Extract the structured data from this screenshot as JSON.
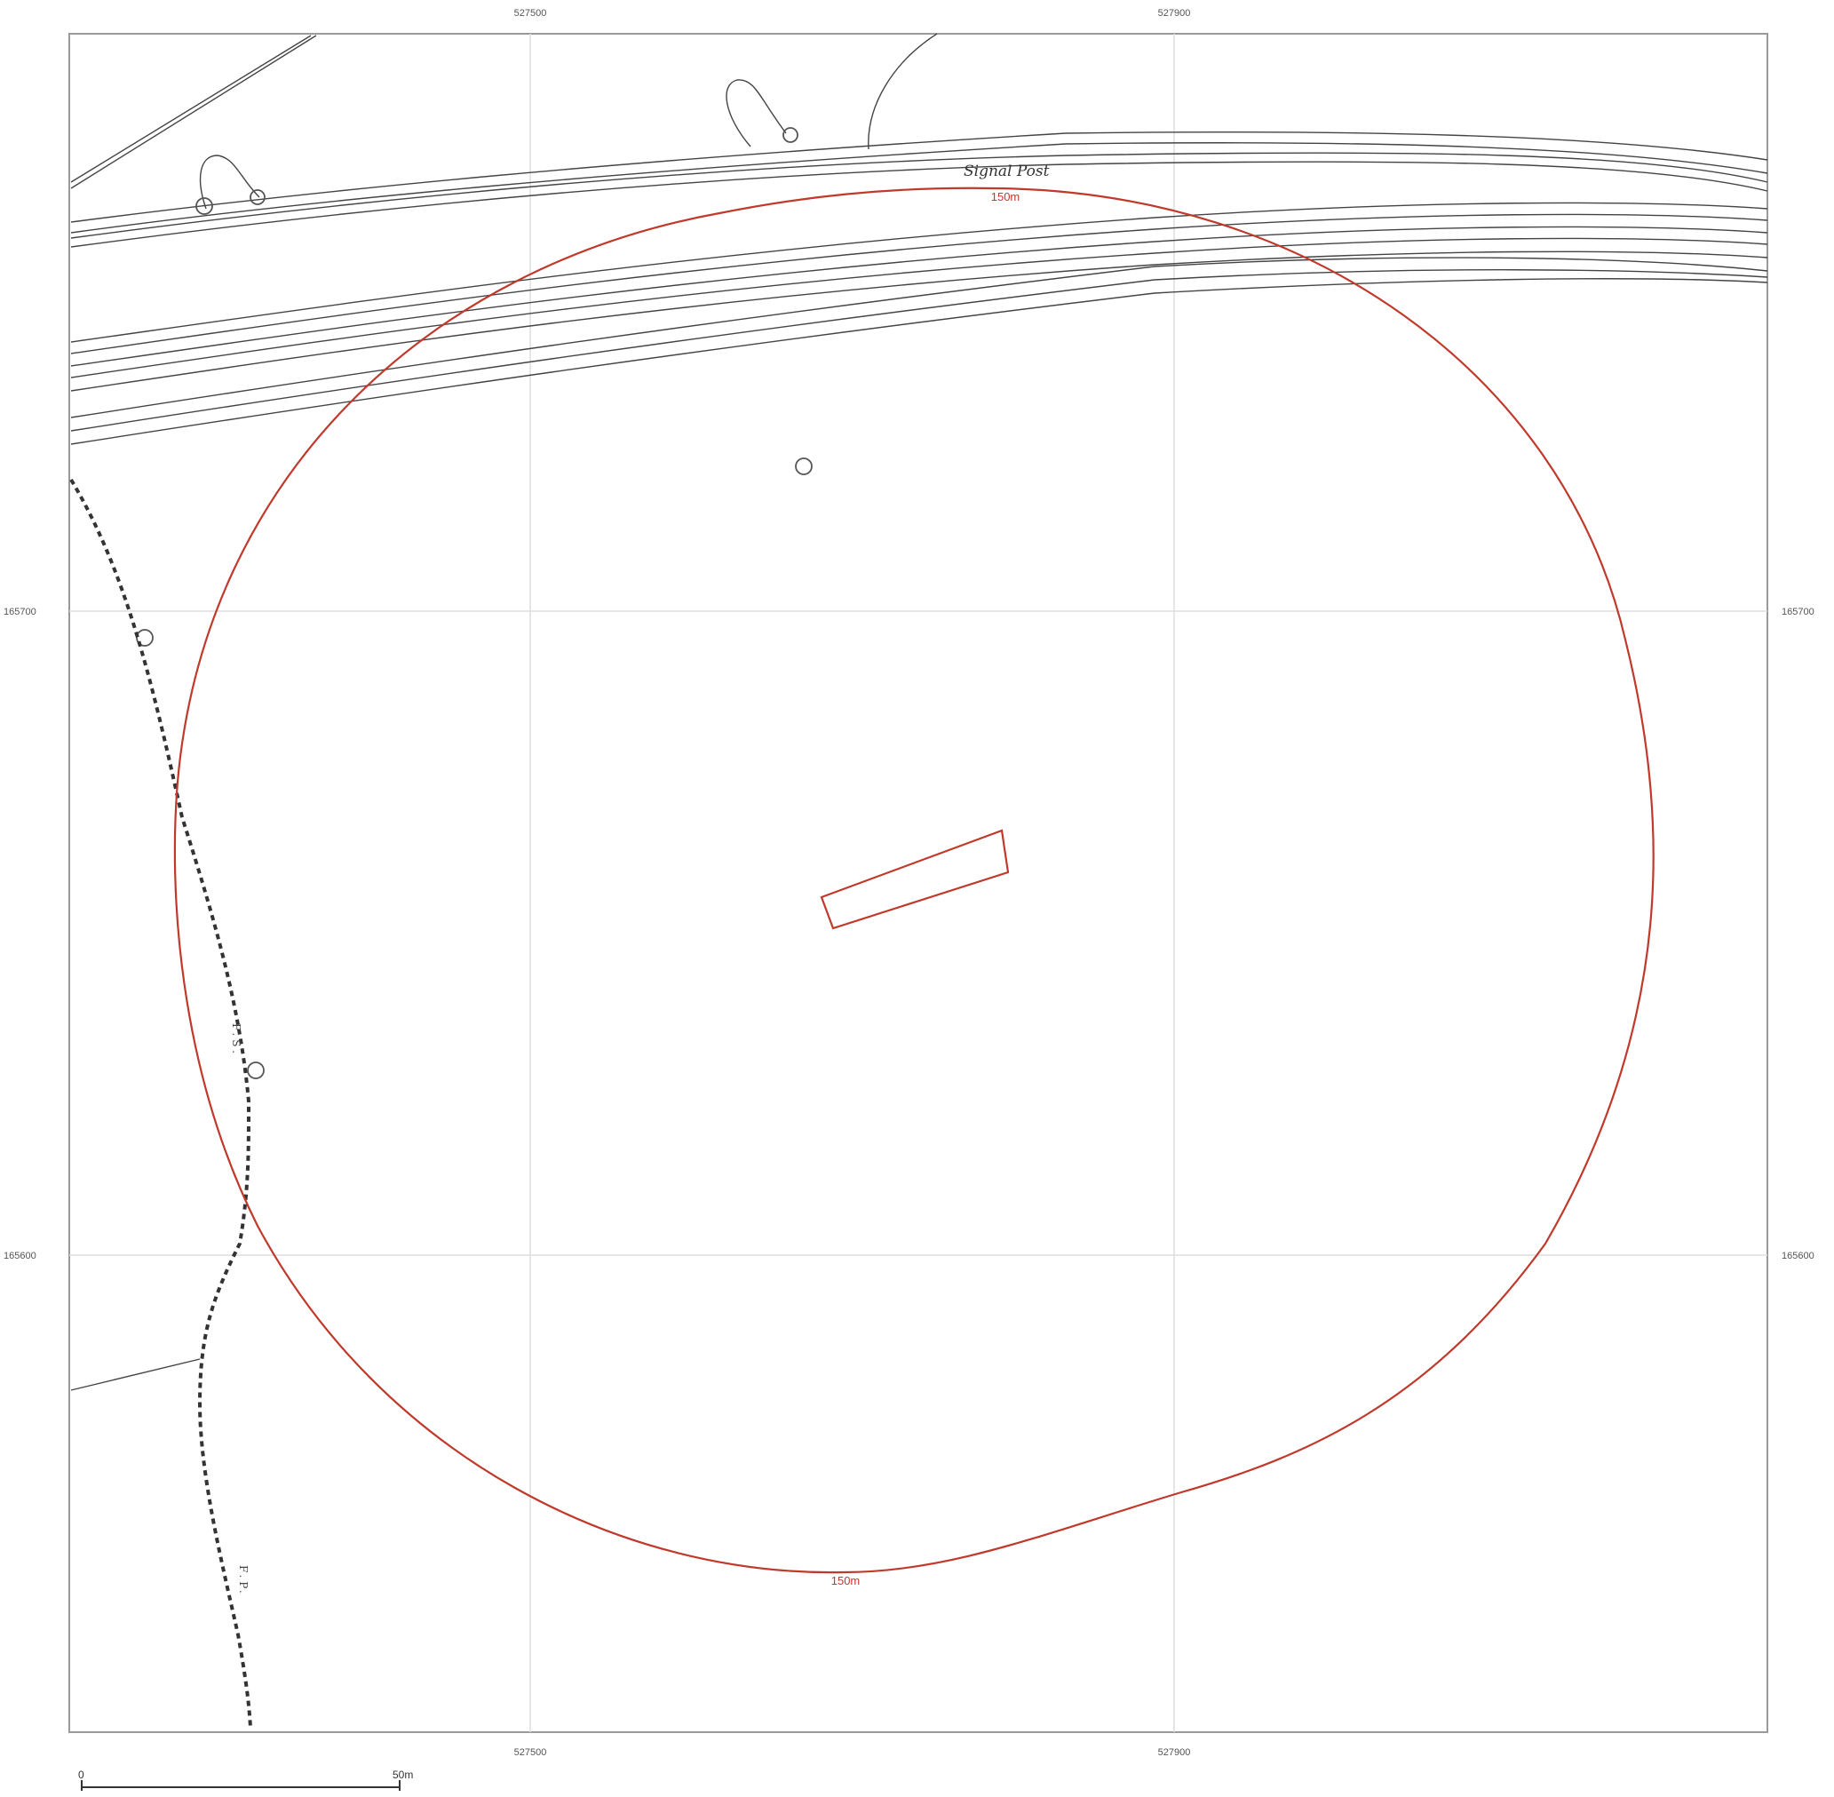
{
  "map": {
    "grid": {
      "easting_labels": [
        "527500",
        "527900"
      ],
      "northing_labels": [
        "165700",
        "165600"
      ]
    },
    "features": {
      "signal_post_label": "Signal Post",
      "path_label_upper": "F.S.",
      "path_label_lower": "F.P.",
      "path_label_long": "F.S. / F.P.",
      "track_label": "F.P."
    },
    "buffer": {
      "top_label": "150m",
      "bottom_label": "150m"
    },
    "scale_bar": {
      "start_label": "0",
      "end_label": "50m"
    },
    "colors": {
      "buffer": "#c0392b",
      "linework": "#444444",
      "grid": "#d8d8d8",
      "frame": "#9a9a9a"
    }
  }
}
